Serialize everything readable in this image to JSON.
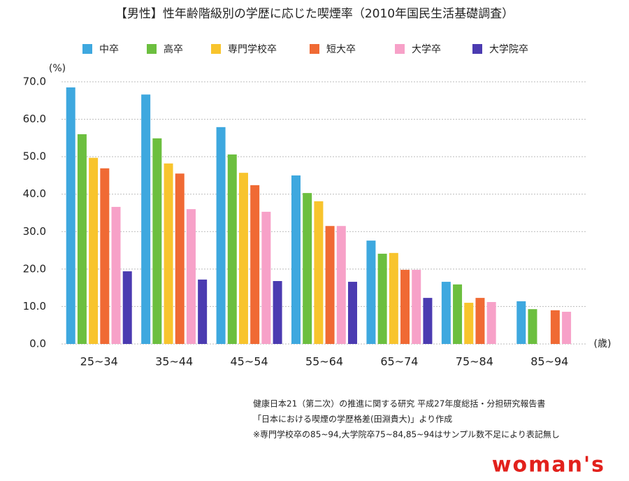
{
  "chart_data": {
    "type": "bar",
    "title": "【男性】性年齢階級別の学歴に応じた喫煙率（2010年国民生活基礎調査）",
    "y_label": "(%)",
    "x_label": "(歳)",
    "categories": [
      "25~34",
      "35~44",
      "45~54",
      "55~64",
      "65~74",
      "75~84",
      "85~94"
    ],
    "series": [
      {
        "name": "中卒",
        "color": "#3ea8df",
        "values": [
          68.5,
          66.6,
          57.9,
          45.0,
          27.6,
          16.6,
          11.4
        ]
      },
      {
        "name": "高卒",
        "color": "#6cbf3f",
        "values": [
          56.0,
          54.9,
          50.6,
          40.3,
          24.1,
          15.9,
          9.3
        ]
      },
      {
        "name": "専門学校卒",
        "color": "#f8c42d",
        "values": [
          49.7,
          48.2,
          45.7,
          38.1,
          24.3,
          11.0,
          null
        ]
      },
      {
        "name": "短大卒",
        "color": "#f06a34",
        "values": [
          46.9,
          45.5,
          42.4,
          31.5,
          19.8,
          12.3,
          9.0
        ]
      },
      {
        "name": "大学卒",
        "color": "#f7a1c8",
        "values": [
          36.6,
          36.0,
          35.3,
          31.5,
          19.8,
          11.2,
          8.6
        ]
      },
      {
        "name": "大学院卒",
        "color": "#4b3bb1",
        "values": [
          19.4,
          17.2,
          16.8,
          16.6,
          12.3,
          null,
          null
        ]
      }
    ],
    "ylim": [
      0,
      70
    ],
    "yticks": [
      {
        "value": 0,
        "label": "0.0"
      },
      {
        "value": 10,
        "label": "10.0"
      },
      {
        "value": 20,
        "label": "20.0"
      },
      {
        "value": 30,
        "label": "30.0"
      },
      {
        "value": 40,
        "label": "40.0"
      },
      {
        "value": 50,
        "label": "50.0"
      },
      {
        "value": 60,
        "label": "60.0"
      },
      {
        "value": 70,
        "label": "70.0"
      }
    ],
    "grid": true
  },
  "source_notes": [
    "健康日本21（第二次）の推進に関する研究 平成27年度総括・分担研究報告書",
    "「日本における喫煙の学歴格差(田淵貴大)」より作成",
    "※専門学校卒の85~94,大学院卒75~84,85~94はサンプル数不足により表記無し"
  ],
  "logo": "woman's"
}
